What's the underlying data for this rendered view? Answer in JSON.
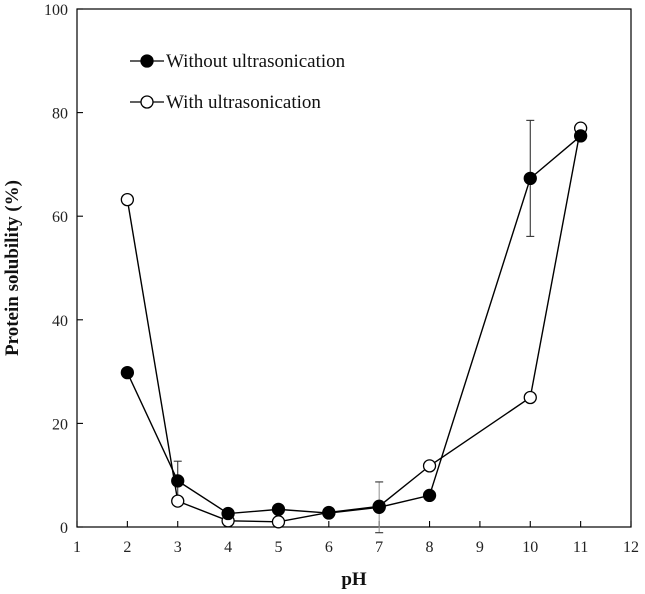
{
  "chart_data": {
    "type": "line",
    "xlabel": "pH",
    "ylabel": "Protein solubility (%)",
    "xlim": [
      1,
      12
    ],
    "ylim": [
      0,
      100
    ],
    "x_ticks": [
      1,
      2,
      3,
      4,
      5,
      6,
      7,
      8,
      9,
      10,
      11,
      12
    ],
    "y_ticks": [
      0,
      20,
      40,
      60,
      80,
      100
    ],
    "grid": false,
    "legend_position": "top-left",
    "series": [
      {
        "name": "Without ultrasonication",
        "marker": "filled-circle",
        "color": "#000000",
        "x": [
          2,
          3,
          4,
          5,
          6,
          7,
          8,
          10,
          11
        ],
        "y": [
          29.8,
          8.9,
          2.6,
          3.4,
          2.7,
          3.8,
          6.1,
          67.3,
          75.5
        ],
        "error": [
          0,
          3.8,
          0,
          0,
          0,
          4.9,
          0,
          11.2,
          0
        ]
      },
      {
        "name": "With ultrasonication",
        "marker": "open-circle",
        "color": "#000000",
        "x": [
          2,
          3,
          4,
          5,
          6,
          7,
          8,
          10,
          11
        ],
        "y": [
          63.2,
          5.0,
          1.2,
          1.0,
          2.8,
          4.0,
          11.8,
          25.0,
          77.0
        ],
        "error": [
          0,
          0,
          0,
          0,
          0,
          0,
          0,
          0,
          0
        ]
      }
    ]
  }
}
